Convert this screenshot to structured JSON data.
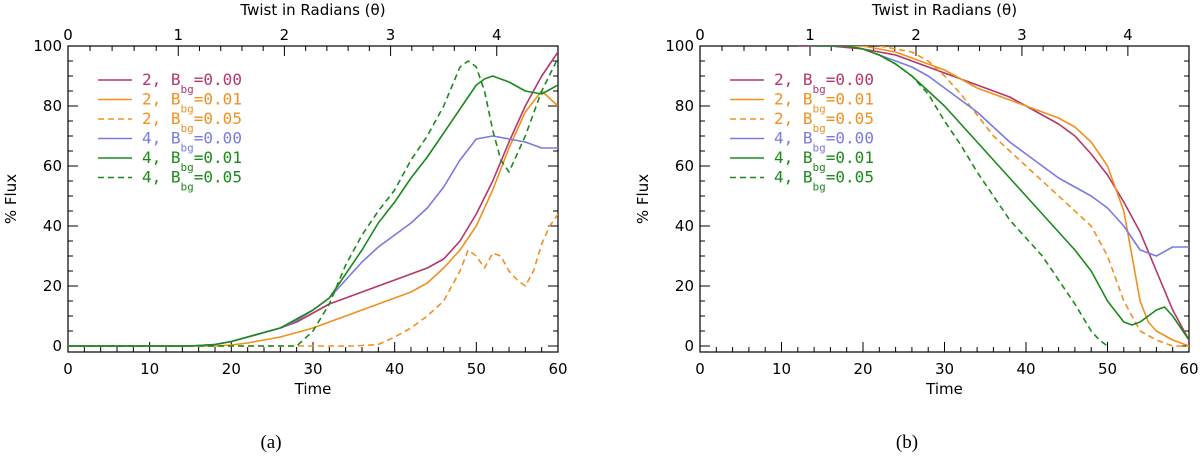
{
  "colors": {
    "magenta": "#b5356c",
    "orange": "#f0901f",
    "blue": "#7a7ae0",
    "green": "#1b8a1b",
    "axis": "#000000"
  },
  "chart_data": [
    {
      "type": "line",
      "panel_label": "(a)",
      "xlabel": "Time",
      "ylabel": "% Flux",
      "top_axis_label": "Twist in Radians (θ)",
      "xlim": [
        0,
        60
      ],
      "ylim": [
        -2,
        100
      ],
      "x_ticks": [
        "0",
        "10",
        "20",
        "30",
        "40",
        "50",
        "60"
      ],
      "y_ticks": [
        "0",
        "20",
        "40",
        "60",
        "80",
        "100"
      ],
      "top_ticks": [
        {
          "label": "0",
          "time": 0.0
        },
        {
          "label": "1",
          "time": 13.5
        },
        {
          "label": "2",
          "time": 26.5
        },
        {
          "label": "3",
          "time": 39.5
        },
        {
          "label": "4",
          "time": 52.5
        }
      ],
      "legend": [
        {
          "prefix": "2, B",
          "sub": "bg",
          "suffix": "=0.00"
        },
        {
          "prefix": "2, B",
          "sub": "bg",
          "suffix": "=0.01"
        },
        {
          "prefix": "2, B",
          "sub": "bg",
          "suffix": "=0.05"
        },
        {
          "prefix": "4, B",
          "sub": "bg",
          "suffix": "=0.00"
        },
        {
          "prefix": "4, B",
          "sub": "bg",
          "suffix": "=0.01"
        },
        {
          "prefix": "4, B",
          "sub": "bg",
          "suffix": "=0.05"
        }
      ],
      "series": [
        {
          "name": "2, Bbg=0.00",
          "color": "magenta",
          "dash": false,
          "x": [
            0,
            15,
            18,
            20,
            22,
            24,
            26,
            28,
            30,
            32,
            34,
            36,
            38,
            40,
            42,
            44,
            46,
            48,
            50,
            52,
            54,
            56,
            58,
            60
          ],
          "y": [
            0,
            0,
            0.5,
            1.5,
            3,
            4.5,
            6,
            8,
            11,
            14,
            16,
            18,
            20,
            22,
            24,
            26,
            29,
            35,
            44,
            55,
            68,
            80,
            90,
            98
          ]
        },
        {
          "name": "2, Bbg=0.01",
          "color": "orange",
          "dash": false,
          "x": [
            0,
            18,
            20,
            22,
            24,
            26,
            28,
            30,
            32,
            34,
            36,
            38,
            40,
            42,
            44,
            46,
            48,
            50,
            52,
            54,
            56,
            58,
            60
          ],
          "y": [
            0,
            0,
            0.3,
            1,
            2,
            3,
            4.5,
            6,
            8,
            10,
            12,
            14,
            16,
            18,
            21,
            26,
            32,
            40,
            52,
            66,
            78,
            85,
            80
          ]
        },
        {
          "name": "2, Bbg=0.05",
          "color": "orange",
          "dash": true,
          "x": [
            0,
            35,
            38,
            40,
            42,
            44,
            46,
            48,
            49,
            50,
            51,
            52,
            53,
            54,
            55,
            56,
            57,
            58,
            59,
            60
          ],
          "y": [
            0,
            0,
            0.5,
            3,
            6,
            10,
            15,
            25,
            32,
            30,
            26,
            31,
            30,
            25,
            22,
            20,
            25,
            34,
            40,
            44
          ]
        },
        {
          "name": "4, Bbg=0.00",
          "color": "blue",
          "dash": false,
          "x": [
            0,
            15,
            18,
            20,
            22,
            24,
            26,
            28,
            30,
            32,
            34,
            36,
            38,
            40,
            42,
            44,
            46,
            48,
            50,
            52,
            54,
            56,
            58,
            60
          ],
          "y": [
            0,
            0,
            0.5,
            1.5,
            3,
            4.5,
            6,
            8.5,
            12,
            16,
            22,
            28,
            33,
            37,
            41,
            46,
            53,
            62,
            69,
            70,
            69,
            68,
            66,
            66
          ]
        },
        {
          "name": "4, Bbg=0.01",
          "color": "green",
          "dash": false,
          "x": [
            0,
            15,
            18,
            20,
            22,
            24,
            26,
            28,
            30,
            32,
            34,
            36,
            38,
            40,
            42,
            44,
            46,
            48,
            50,
            51,
            52,
            53,
            54,
            56,
            58,
            60
          ],
          "y": [
            0,
            0,
            0.5,
            1.5,
            3,
            4.5,
            6,
            9,
            12,
            16,
            24,
            32,
            41,
            48,
            56,
            63,
            71,
            79,
            87,
            89,
            90,
            89,
            88,
            85,
            84,
            87
          ]
        },
        {
          "name": "4, Bbg=0.05",
          "color": "green",
          "dash": true,
          "x": [
            0,
            28,
            30,
            32,
            34,
            36,
            38,
            40,
            42,
            44,
            46,
            48,
            49,
            50,
            51,
            52,
            53,
            54,
            56,
            58,
            60
          ],
          "y": [
            0,
            0,
            5,
            14,
            27,
            37,
            45,
            52,
            62,
            70,
            80,
            93,
            95,
            93,
            85,
            72,
            62,
            58,
            70,
            85,
            96
          ]
        }
      ]
    },
    {
      "type": "line",
      "panel_label": "(b)",
      "xlabel": "Time",
      "ylabel": "% Flux",
      "top_axis_label": "Twist in Radians (θ)",
      "xlim": [
        0,
        60
      ],
      "ylim": [
        -2,
        100
      ],
      "x_ticks": [
        "0",
        "10",
        "20",
        "30",
        "40",
        "50",
        "60"
      ],
      "y_ticks": [
        "0",
        "20",
        "40",
        "60",
        "80",
        "100"
      ],
      "top_ticks": [
        {
          "label": "0",
          "time": 0.0
        },
        {
          "label": "1",
          "time": 13.5
        },
        {
          "label": "2",
          "time": 26.5
        },
        {
          "label": "3",
          "time": 39.5
        },
        {
          "label": "4",
          "time": 52.5
        }
      ],
      "legend": [
        {
          "prefix": "2, B",
          "sub": "bg",
          "suffix": "=0.00"
        },
        {
          "prefix": "2, B",
          "sub": "bg",
          "suffix": "=0.01"
        },
        {
          "prefix": "2, B",
          "sub": "bg",
          "suffix": "=0.05"
        },
        {
          "prefix": "4, B",
          "sub": "bg",
          "suffix": "=0.00"
        },
        {
          "prefix": "4, B",
          "sub": "bg",
          "suffix": "=0.01"
        },
        {
          "prefix": "4, B",
          "sub": "bg",
          "suffix": "=0.05"
        }
      ],
      "series": [
        {
          "name": "2, Bbg=0.00",
          "color": "magenta",
          "dash": false,
          "x": [
            12,
            16,
            20,
            24,
            28,
            30,
            32,
            34,
            36,
            38,
            40,
            42,
            44,
            46,
            48,
            50,
            52,
            54,
            56,
            58,
            60
          ],
          "y": [
            100,
            100,
            99,
            97,
            93,
            91,
            89,
            87,
            85,
            83,
            80,
            77,
            74,
            70,
            64,
            57,
            48,
            38,
            25,
            12,
            2
          ]
        },
        {
          "name": "2, Bbg=0.01",
          "color": "orange",
          "dash": false,
          "x": [
            18,
            20,
            22,
            24,
            26,
            28,
            30,
            32,
            34,
            36,
            38,
            40,
            42,
            44,
            46,
            48,
            50,
            52,
            53,
            54,
            55,
            56,
            58,
            60
          ],
          "y": [
            100,
            100,
            99,
            98,
            96,
            94,
            92,
            89,
            86,
            84,
            82,
            80,
            78,
            76,
            73,
            68,
            60,
            45,
            30,
            15,
            8,
            5,
            2,
            0
          ]
        },
        {
          "name": "2, Bbg=0.05",
          "color": "orange",
          "dash": true,
          "x": [
            22,
            24,
            26,
            28,
            30,
            32,
            34,
            36,
            38,
            40,
            42,
            44,
            46,
            48,
            50,
            52,
            54,
            56,
            58,
            60
          ],
          "y": [
            100,
            99,
            98,
            95,
            90,
            84,
            77,
            70,
            65,
            60,
            55,
            50,
            45,
            40,
            30,
            15,
            5,
            2,
            0,
            0
          ]
        },
        {
          "name": "4, Bbg=0.00",
          "color": "blue",
          "dash": false,
          "x": [
            14,
            18,
            20,
            22,
            24,
            26,
            28,
            30,
            32,
            34,
            36,
            38,
            40,
            42,
            44,
            46,
            48,
            50,
            52,
            54,
            56,
            58,
            60
          ],
          "y": [
            100,
            100,
            99,
            97,
            95,
            93,
            90,
            86,
            82,
            78,
            73,
            68,
            64,
            60,
            56,
            53,
            50,
            46,
            40,
            32,
            30,
            33,
            33
          ]
        },
        {
          "name": "4, Bbg=0.01",
          "color": "green",
          "dash": false,
          "x": [
            14,
            18,
            20,
            22,
            24,
            26,
            28,
            30,
            32,
            34,
            36,
            38,
            40,
            42,
            44,
            46,
            48,
            50,
            52,
            53,
            54,
            56,
            57,
            58,
            60
          ],
          "y": [
            100,
            100,
            99,
            97,
            94,
            90,
            85,
            80,
            74,
            68,
            62,
            56,
            50,
            44,
            38,
            32,
            25,
            15,
            8,
            7,
            8,
            12,
            13,
            10,
            2
          ]
        },
        {
          "name": "4, Bbg=0.05",
          "color": "green",
          "dash": true,
          "x": [
            18,
            20,
            22,
            24,
            26,
            28,
            30,
            32,
            34,
            36,
            38,
            40,
            42,
            44,
            46,
            48,
            49,
            50
          ],
          "y": [
            100,
            99,
            97,
            94,
            90,
            84,
            75,
            67,
            58,
            50,
            42,
            36,
            30,
            22,
            14,
            5,
            2,
            0
          ]
        }
      ]
    }
  ]
}
